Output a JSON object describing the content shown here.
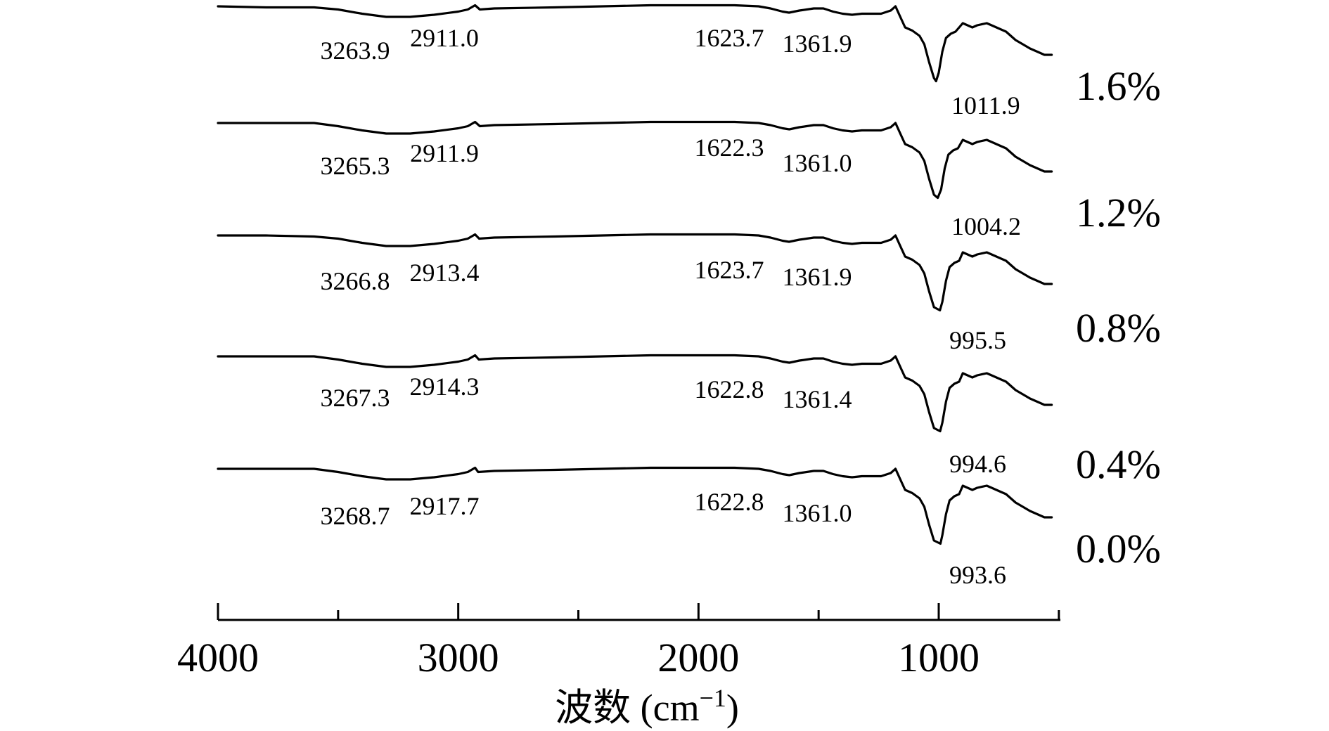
{
  "chart_data": {
    "type": "line",
    "xlabel": "波数 (cm",
    "xlabel_sup": "−1",
    "xlabel_close": ")",
    "x_ticks": [
      "4000",
      "3000",
      "2000",
      "1000"
    ],
    "xlim": [
      4000,
      500
    ],
    "series": [
      {
        "name": "1.6%",
        "points": [
          [
            4000,
            98
          ],
          [
            3800,
            97
          ],
          [
            3600,
            97
          ],
          [
            3500,
            95
          ],
          [
            3400,
            91
          ],
          [
            3300,
            88
          ],
          [
            3200,
            88
          ],
          [
            3100,
            90
          ],
          [
            3000,
            93
          ],
          [
            2960,
            95
          ],
          [
            2930,
            99
          ],
          [
            2910,
            95
          ],
          [
            2850,
            96
          ],
          [
            2600,
            97
          ],
          [
            2400,
            98
          ],
          [
            2200,
            99
          ],
          [
            2000,
            99
          ],
          [
            1850,
            99
          ],
          [
            1750,
            98
          ],
          [
            1700,
            96
          ],
          [
            1650,
            93
          ],
          [
            1623,
            92
          ],
          [
            1580,
            94
          ],
          [
            1520,
            96
          ],
          [
            1480,
            96
          ],
          [
            1440,
            93
          ],
          [
            1400,
            91
          ],
          [
            1361,
            90
          ],
          [
            1320,
            91
          ],
          [
            1280,
            91
          ],
          [
            1240,
            91
          ],
          [
            1200,
            94
          ],
          [
            1180,
            98
          ],
          [
            1160,
            88
          ],
          [
            1140,
            78
          ],
          [
            1110,
            75
          ],
          [
            1080,
            70
          ],
          [
            1060,
            62
          ],
          [
            1040,
            45
          ],
          [
            1020,
            30
          ],
          [
            1011,
            27
          ],
          [
            1000,
            35
          ],
          [
            985,
            55
          ],
          [
            970,
            68
          ],
          [
            950,
            72
          ],
          [
            930,
            74
          ],
          [
            900,
            82
          ],
          [
            880,
            80
          ],
          [
            860,
            78
          ],
          [
            840,
            80
          ],
          [
            800,
            82
          ],
          [
            780,
            80
          ],
          [
            760,
            78
          ],
          [
            740,
            76
          ],
          [
            720,
            74
          ],
          [
            700,
            70
          ],
          [
            680,
            66
          ],
          [
            650,
            62
          ],
          [
            620,
            58
          ],
          [
            590,
            55
          ],
          [
            560,
            52
          ],
          [
            530,
            52
          ]
        ]
      },
      {
        "name": "1.2%",
        "points": [
          [
            4000,
            98
          ],
          [
            3800,
            98
          ],
          [
            3600,
            98
          ],
          [
            3500,
            95
          ],
          [
            3400,
            91
          ],
          [
            3300,
            88
          ],
          [
            3200,
            88
          ],
          [
            3100,
            90
          ],
          [
            3000,
            93
          ],
          [
            2960,
            95
          ],
          [
            2930,
            99
          ],
          [
            2910,
            95
          ],
          [
            2850,
            96
          ],
          [
            2600,
            97
          ],
          [
            2400,
            98
          ],
          [
            2200,
            99
          ],
          [
            2000,
            99
          ],
          [
            1850,
            99
          ],
          [
            1750,
            98
          ],
          [
            1700,
            96
          ],
          [
            1650,
            93
          ],
          [
            1622,
            92
          ],
          [
            1580,
            94
          ],
          [
            1520,
            96
          ],
          [
            1480,
            96
          ],
          [
            1440,
            93
          ],
          [
            1400,
            91
          ],
          [
            1361,
            90
          ],
          [
            1320,
            91
          ],
          [
            1280,
            91
          ],
          [
            1240,
            91
          ],
          [
            1200,
            94
          ],
          [
            1180,
            98
          ],
          [
            1160,
            88
          ],
          [
            1140,
            78
          ],
          [
            1110,
            75
          ],
          [
            1080,
            70
          ],
          [
            1060,
            62
          ],
          [
            1040,
            45
          ],
          [
            1020,
            30
          ],
          [
            1004,
            27
          ],
          [
            990,
            35
          ],
          [
            975,
            55
          ],
          [
            960,
            68
          ],
          [
            940,
            72
          ],
          [
            920,
            74
          ],
          [
            900,
            82
          ],
          [
            880,
            80
          ],
          [
            860,
            78
          ],
          [
            840,
            80
          ],
          [
            800,
            82
          ],
          [
            780,
            80
          ],
          [
            760,
            78
          ],
          [
            740,
            76
          ],
          [
            720,
            74
          ],
          [
            700,
            70
          ],
          [
            680,
            66
          ],
          [
            650,
            62
          ],
          [
            620,
            58
          ],
          [
            590,
            55
          ],
          [
            560,
            52
          ],
          [
            530,
            52
          ]
        ]
      },
      {
        "name": "0.8%",
        "points": [
          [
            4000,
            98
          ],
          [
            3800,
            98
          ],
          [
            3600,
            97
          ],
          [
            3500,
            95
          ],
          [
            3400,
            91
          ],
          [
            3300,
            88
          ],
          [
            3200,
            88
          ],
          [
            3100,
            90
          ],
          [
            3000,
            93
          ],
          [
            2960,
            95
          ],
          [
            2930,
            99
          ],
          [
            2913,
            95
          ],
          [
            2850,
            96
          ],
          [
            2600,
            97
          ],
          [
            2400,
            98
          ],
          [
            2200,
            99
          ],
          [
            2000,
            99
          ],
          [
            1850,
            99
          ],
          [
            1750,
            98
          ],
          [
            1700,
            96
          ],
          [
            1650,
            93
          ],
          [
            1623,
            92
          ],
          [
            1580,
            94
          ],
          [
            1520,
            96
          ],
          [
            1480,
            96
          ],
          [
            1440,
            93
          ],
          [
            1400,
            91
          ],
          [
            1361,
            90
          ],
          [
            1320,
            91
          ],
          [
            1280,
            91
          ],
          [
            1240,
            91
          ],
          [
            1200,
            94
          ],
          [
            1180,
            98
          ],
          [
            1160,
            88
          ],
          [
            1140,
            78
          ],
          [
            1110,
            75
          ],
          [
            1080,
            70
          ],
          [
            1060,
            62
          ],
          [
            1040,
            45
          ],
          [
            1020,
            30
          ],
          [
            995,
            27
          ],
          [
            985,
            35
          ],
          [
            970,
            55
          ],
          [
            955,
            68
          ],
          [
            935,
            72
          ],
          [
            915,
            74
          ],
          [
            900,
            82
          ],
          [
            880,
            80
          ],
          [
            860,
            78
          ],
          [
            840,
            80
          ],
          [
            800,
            82
          ],
          [
            780,
            80
          ],
          [
            760,
            78
          ],
          [
            740,
            76
          ],
          [
            720,
            74
          ],
          [
            700,
            70
          ],
          [
            680,
            66
          ],
          [
            650,
            62
          ],
          [
            620,
            58
          ],
          [
            590,
            55
          ],
          [
            560,
            52
          ],
          [
            530,
            52
          ]
        ]
      },
      {
        "name": "0.4%",
        "points": [
          [
            4000,
            98
          ],
          [
            3800,
            98
          ],
          [
            3600,
            98
          ],
          [
            3500,
            95
          ],
          [
            3400,
            91
          ],
          [
            3300,
            88
          ],
          [
            3200,
            88
          ],
          [
            3100,
            90
          ],
          [
            3000,
            93
          ],
          [
            2960,
            95
          ],
          [
            2930,
            99
          ],
          [
            2914,
            95
          ],
          [
            2850,
            96
          ],
          [
            2600,
            97
          ],
          [
            2400,
            98
          ],
          [
            2200,
            99
          ],
          [
            2000,
            99
          ],
          [
            1850,
            99
          ],
          [
            1750,
            98
          ],
          [
            1700,
            96
          ],
          [
            1650,
            93
          ],
          [
            1622,
            92
          ],
          [
            1580,
            94
          ],
          [
            1520,
            96
          ],
          [
            1480,
            96
          ],
          [
            1440,
            93
          ],
          [
            1400,
            91
          ],
          [
            1361,
            90
          ],
          [
            1320,
            91
          ],
          [
            1280,
            91
          ],
          [
            1240,
            91
          ],
          [
            1200,
            94
          ],
          [
            1180,
            98
          ],
          [
            1160,
            88
          ],
          [
            1140,
            78
          ],
          [
            1110,
            75
          ],
          [
            1080,
            70
          ],
          [
            1060,
            62
          ],
          [
            1040,
            45
          ],
          [
            1020,
            30
          ],
          [
            994,
            27
          ],
          [
            985,
            35
          ],
          [
            970,
            55
          ],
          [
            955,
            68
          ],
          [
            935,
            72
          ],
          [
            915,
            74
          ],
          [
            900,
            82
          ],
          [
            880,
            80
          ],
          [
            860,
            78
          ],
          [
            840,
            80
          ],
          [
            800,
            82
          ],
          [
            780,
            80
          ],
          [
            760,
            78
          ],
          [
            740,
            76
          ],
          [
            720,
            74
          ],
          [
            700,
            70
          ],
          [
            680,
            66
          ],
          [
            650,
            62
          ],
          [
            620,
            58
          ],
          [
            590,
            55
          ],
          [
            560,
            52
          ],
          [
            530,
            52
          ]
        ]
      },
      {
        "name": "0.0%",
        "points": [
          [
            4000,
            98
          ],
          [
            3800,
            98
          ],
          [
            3600,
            98
          ],
          [
            3500,
            95
          ],
          [
            3400,
            91
          ],
          [
            3300,
            88
          ],
          [
            3200,
            88
          ],
          [
            3100,
            90
          ],
          [
            3000,
            93
          ],
          [
            2960,
            95
          ],
          [
            2930,
            99
          ],
          [
            2917,
            95
          ],
          [
            2850,
            96
          ],
          [
            2600,
            97
          ],
          [
            2400,
            98
          ],
          [
            2200,
            99
          ],
          [
            2000,
            99
          ],
          [
            1850,
            99
          ],
          [
            1750,
            98
          ],
          [
            1700,
            96
          ],
          [
            1650,
            93
          ],
          [
            1622,
            92
          ],
          [
            1580,
            94
          ],
          [
            1520,
            96
          ],
          [
            1480,
            96
          ],
          [
            1440,
            93
          ],
          [
            1400,
            91
          ],
          [
            1361,
            90
          ],
          [
            1320,
            91
          ],
          [
            1280,
            91
          ],
          [
            1240,
            91
          ],
          [
            1200,
            94
          ],
          [
            1180,
            98
          ],
          [
            1160,
            88
          ],
          [
            1140,
            78
          ],
          [
            1110,
            75
          ],
          [
            1080,
            70
          ],
          [
            1060,
            62
          ],
          [
            1040,
            45
          ],
          [
            1020,
            30
          ],
          [
            993,
            27
          ],
          [
            985,
            35
          ],
          [
            970,
            55
          ],
          [
            955,
            68
          ],
          [
            935,
            72
          ],
          [
            915,
            74
          ],
          [
            900,
            82
          ],
          [
            880,
            80
          ],
          [
            860,
            78
          ],
          [
            840,
            80
          ],
          [
            800,
            82
          ],
          [
            780,
            80
          ],
          [
            760,
            78
          ],
          [
            740,
            76
          ],
          [
            720,
            74
          ],
          [
            700,
            70
          ],
          [
            680,
            66
          ],
          [
            650,
            62
          ],
          [
            620,
            58
          ],
          [
            590,
            55
          ],
          [
            560,
            52
          ],
          [
            530,
            52
          ]
        ]
      }
    ],
    "annotations": [
      {
        "series": "1.6%",
        "labels": [
          "3263.9",
          "2911.0",
          "1623.7",
          "1361.9",
          "1011.9"
        ]
      },
      {
        "series": "1.2%",
        "labels": [
          "3265.3",
          "2911.9",
          "1622.3",
          "1361.0",
          "1004.2"
        ]
      },
      {
        "series": "0.8%",
        "labels": [
          "3266.8",
          "2913.4",
          "1623.7",
          "1361.9",
          "995.5"
        ]
      },
      {
        "series": "0.4%",
        "labels": [
          "3267.3",
          "2914.3",
          "1622.8",
          "1361.4",
          "994.6"
        ]
      },
      {
        "series": "0.0%",
        "labels": [
          "3268.7",
          "2917.7",
          "1622.8",
          "1361.0",
          "993.6"
        ]
      }
    ]
  }
}
